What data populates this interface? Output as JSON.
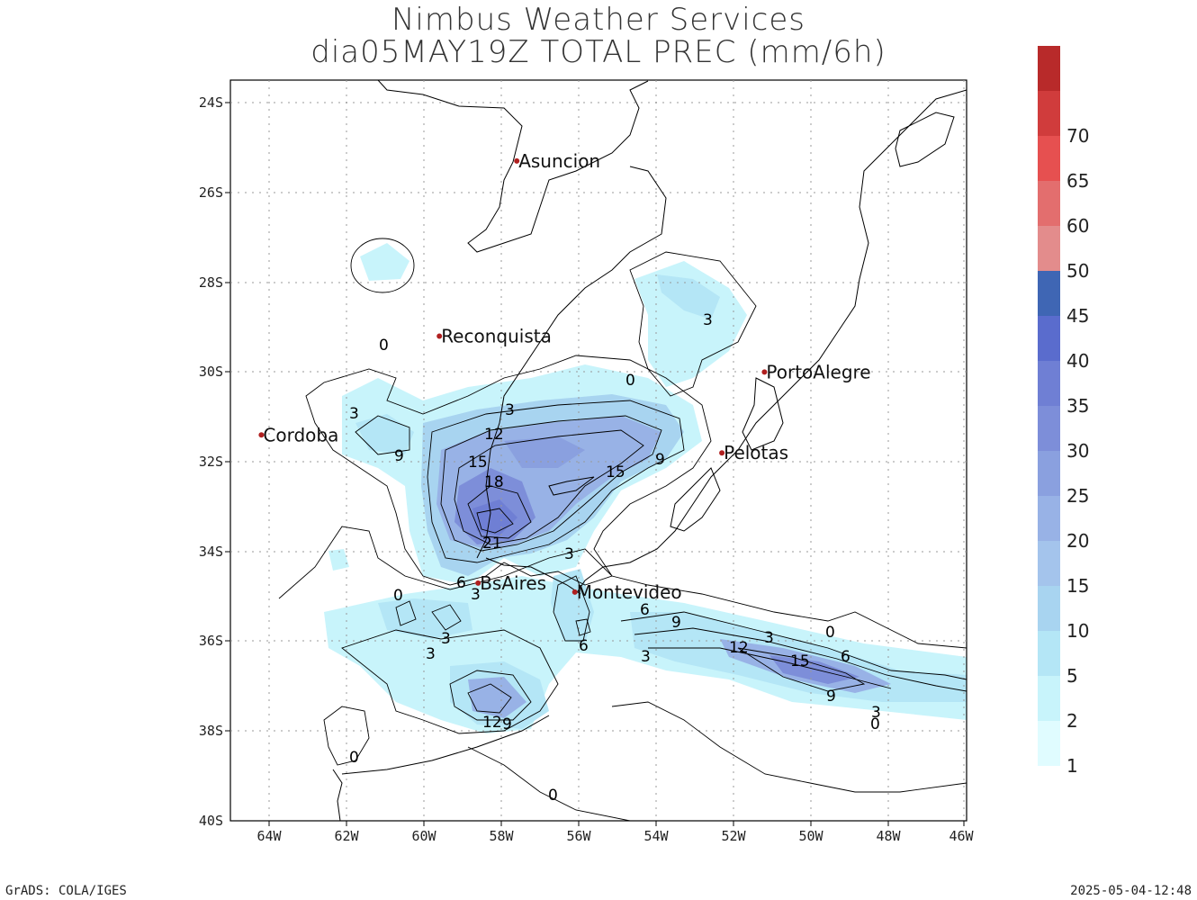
{
  "title_line1": "Nimbus Weather Services",
  "title_line2": "dia05MAY19Z TOTAL PREC (mm/6h)",
  "footer_left": "GrADS: COLA/IGES",
  "footer_right": "2025-05-04-12:48",
  "axes": {
    "lat_labels": [
      "24S",
      "26S",
      "28S",
      "30S",
      "32S",
      "34S",
      "36S",
      "38S",
      "40S"
    ],
    "lon_labels": [
      "64W",
      "62W",
      "60W",
      "58W",
      "56W",
      "54W",
      "52W",
      "50W",
      "48W",
      "46W"
    ]
  },
  "colorbar": {
    "levels": [
      "1",
      "2",
      "5",
      "10",
      "15",
      "20",
      "25",
      "30",
      "35",
      "40",
      "45",
      "50",
      "60",
      "65",
      "70"
    ],
    "colors": [
      "#e0fcff",
      "#c8f4fb",
      "#b4e6f6",
      "#a8d4f0",
      "#a4c4ec",
      "#98b2e6",
      "#8aa0df",
      "#7d8ed9",
      "#6f7fd4",
      "#5a6ccd",
      "#3f66b4",
      "#e38c8c",
      "#e36e6e",
      "#e65050",
      "#d03c3c",
      "#b82a2a"
    ]
  },
  "cities": [
    {
      "name": "Asuncion",
      "lon": -57.6,
      "lat": -25.3
    },
    {
      "name": "Reconquista",
      "lon": -59.6,
      "lat": -29.2
    },
    {
      "name": "Cordoba",
      "lon": -64.2,
      "lat": -31.4
    },
    {
      "name": "PortoAlegre",
      "lon": -51.2,
      "lat": -30.0
    },
    {
      "name": "Pelotas",
      "lon": -52.3,
      "lat": -31.8
    },
    {
      "name": "BsAires",
      "lon": -58.6,
      "lat": -34.7
    },
    {
      "name": "Montevideo",
      "lon": -56.1,
      "lat": -34.9
    }
  ],
  "contour_labels": [
    "0",
    "3",
    "6",
    "9",
    "12",
    "15",
    "18",
    "21",
    "0",
    "3",
    "9",
    "15",
    "6",
    "3",
    "9",
    "12",
    "15",
    "6",
    "9",
    "3",
    "0",
    "0",
    "3",
    "6",
    "12",
    "9",
    "0",
    "0",
    "3"
  ]
}
